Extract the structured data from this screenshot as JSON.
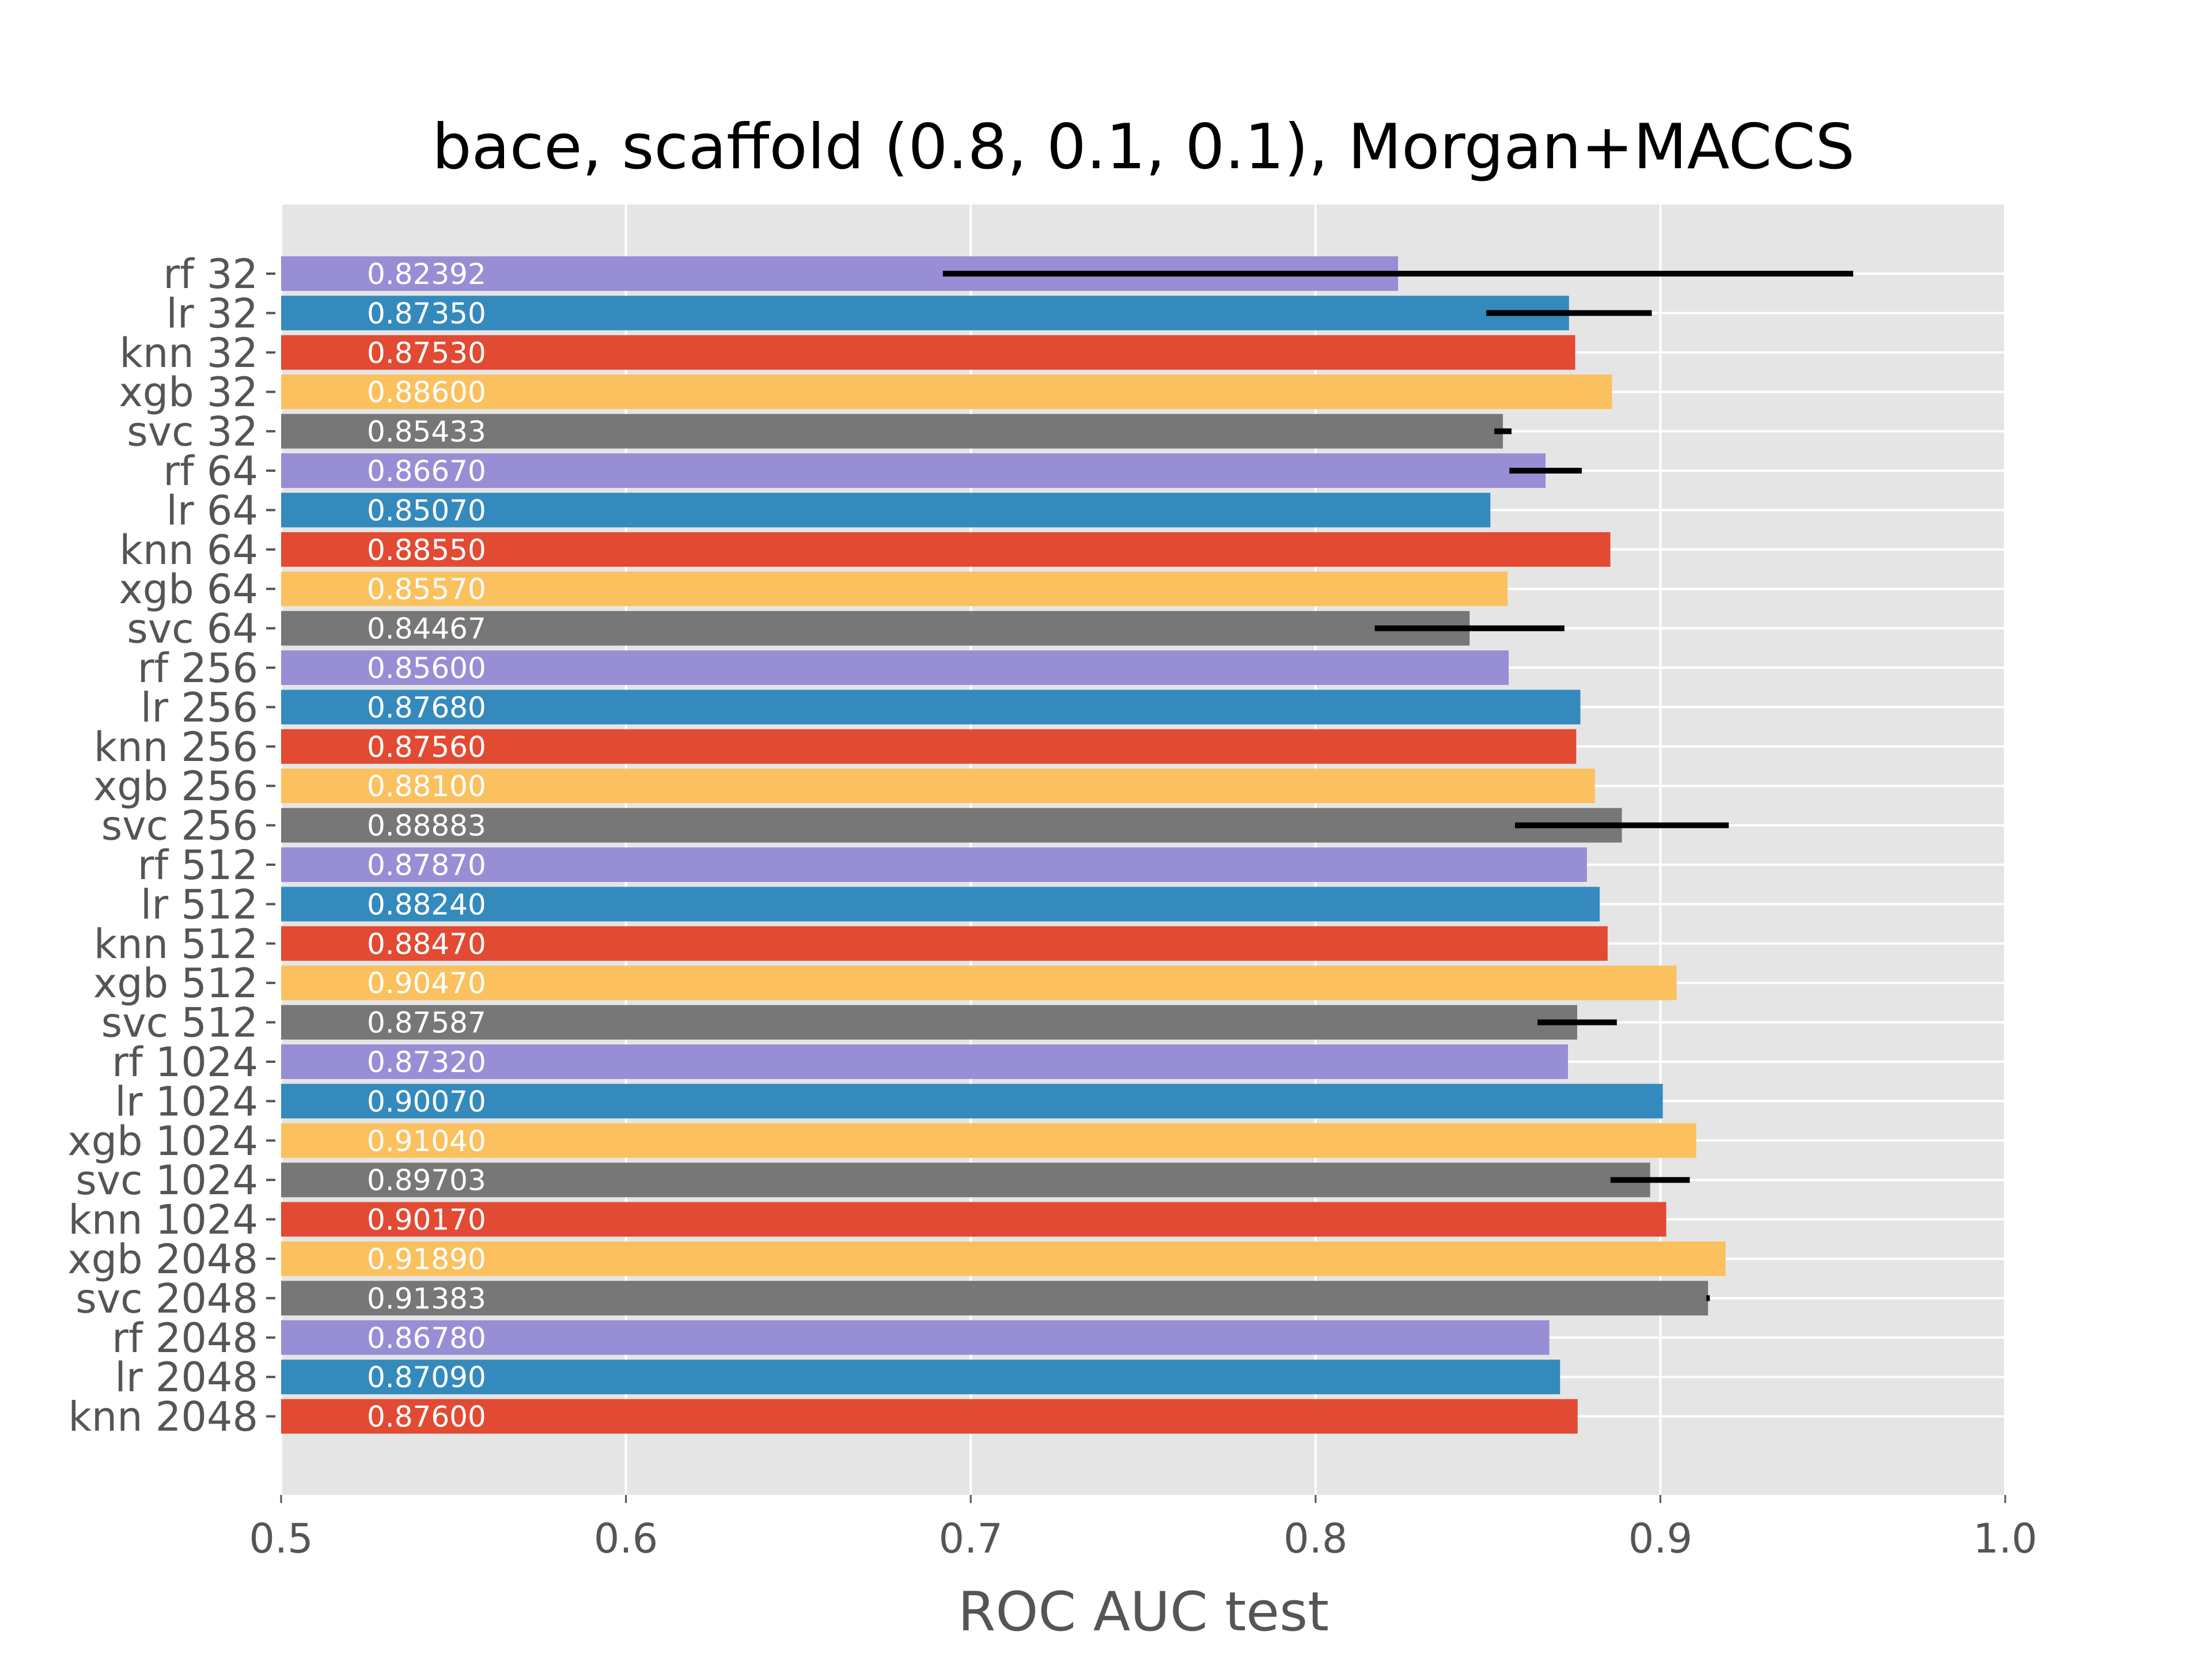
{
  "chart_data": {
    "type": "bar",
    "orientation": "horizontal",
    "title": "bace, scaffold (0.8, 0.1, 0.1), Morgan+MACCS",
    "xlabel": "ROC AUC test",
    "ylabel": "",
    "xlim": [
      0.5,
      1.0
    ],
    "xticks": [
      "0.5",
      "0.6",
      "0.7",
      "0.8",
      "0.9",
      "1.0"
    ],
    "grid": true,
    "legend": "none",
    "categories": [
      "rf 32",
      "lr 32",
      "knn 32",
      "xgb 32",
      "svc 32",
      "rf 64",
      "lr 64",
      "knn 64",
      "xgb 64",
      "svc 64",
      "rf 256",
      "lr 256",
      "knn 256",
      "xgb 256",
      "svc 256",
      "rf 512",
      "lr 512",
      "knn 512",
      "xgb 512",
      "svc 512",
      "rf 1024",
      "lr 1024",
      "xgb 1024",
      "svc 1024",
      "knn 1024",
      "xgb 2048",
      "svc 2048",
      "rf 2048",
      "lr 2048",
      "knn 2048"
    ],
    "values": [
      0.82392,
      0.8735,
      0.8753,
      0.886,
      0.85433,
      0.8667,
      0.8507,
      0.8855,
      0.8557,
      0.84467,
      0.856,
      0.8768,
      0.8756,
      0.881,
      0.88883,
      0.8787,
      0.8824,
      0.8847,
      0.9047,
      0.87587,
      0.8732,
      0.9007,
      0.9104,
      0.89703,
      0.9017,
      0.9189,
      0.91383,
      0.8678,
      0.8709,
      0.876
    ],
    "value_labels": [
      "0.82392",
      "0.87350",
      "0.87530",
      "0.88600",
      "0.85433",
      "0.86670",
      "0.85070",
      "0.88550",
      "0.85570",
      "0.84467",
      "0.85600",
      "0.87680",
      "0.87560",
      "0.88100",
      "0.88883",
      "0.87870",
      "0.88240",
      "0.88470",
      "0.90470",
      "0.87587",
      "0.87320",
      "0.90070",
      "0.91040",
      "0.89703",
      "0.90170",
      "0.91890",
      "0.91383",
      "0.86780",
      "0.87090",
      "0.87600"
    ],
    "errors": [
      0.132,
      0.024,
      0,
      0,
      0.0025,
      0.0105,
      0,
      0,
      0,
      0.0275,
      0,
      0,
      0,
      0,
      0.031,
      0,
      0,
      0,
      0,
      0.0115,
      0,
      0,
      0,
      0.0115,
      0,
      0,
      0.0005,
      0,
      0,
      0
    ],
    "colors": [
      "#988ED5",
      "#348ABD",
      "#E24A33",
      "#FBC15E",
      "#777777",
      "#988ED5",
      "#348ABD",
      "#E24A33",
      "#FBC15E",
      "#777777",
      "#988ED5",
      "#348ABD",
      "#E24A33",
      "#FBC15E",
      "#777777",
      "#988ED5",
      "#348ABD",
      "#E24A33",
      "#FBC15E",
      "#777777",
      "#988ED5",
      "#348ABD",
      "#FBC15E",
      "#777777",
      "#E24A33",
      "#FBC15E",
      "#777777",
      "#988ED5",
      "#348ABD",
      "#E24A33"
    ],
    "plot_background": "#E5E5E5",
    "grid_color": "#FFFFFF",
    "error_bar_color": "#000000"
  }
}
